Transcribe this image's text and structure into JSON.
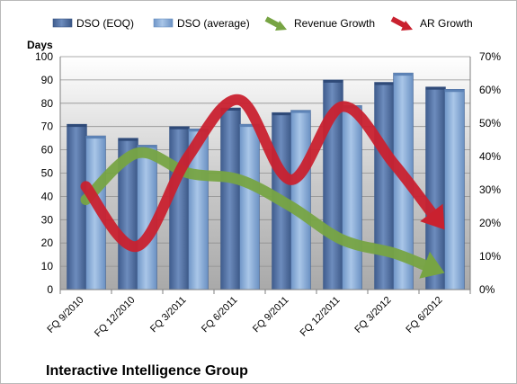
{
  "chart_data": {
    "type": "bar",
    "title": "Interactive Intelligence Group",
    "ylabel": "Days",
    "ylim": [
      0,
      100
    ],
    "y_ticks": [
      "0",
      "10",
      "20",
      "30",
      "40",
      "50",
      "60",
      "70",
      "80",
      "90",
      "100"
    ],
    "y2lim": [
      0,
      70
    ],
    "y2_ticks": [
      "0%",
      "10%",
      "20%",
      "30%",
      "40%",
      "50%",
      "60%",
      "70%"
    ],
    "legend_position": "top",
    "grid": true,
    "categories": [
      "FQ 9/2010",
      "FQ 12/2010",
      "FQ 3/2011",
      "FQ 6/2011",
      "FQ 9/2011",
      "FQ 12/2011",
      "FQ 3/2012",
      "FQ 6/2012"
    ],
    "series": [
      {
        "name": "DSO (EOQ)",
        "type": "bar",
        "axis": "left",
        "color": "#4f6fa0",
        "values": [
          71,
          65,
          70,
          78,
          76,
          90,
          89,
          87
        ]
      },
      {
        "name": "DSO (average)",
        "type": "bar",
        "axis": "right_days",
        "color": "#86aad4",
        "values": [
          66,
          62,
          69,
          71,
          77,
          79,
          93,
          86
        ]
      },
      {
        "name": "Revenue Growth",
        "type": "arrow-line",
        "axis": "right",
        "color": "#77a443",
        "values": [
          27,
          41,
          35,
          33,
          25,
          15,
          11,
          5
        ]
      },
      {
        "name": "AR Growth",
        "type": "arrow-line",
        "axis": "right",
        "color": "#c9212f",
        "values": [
          31,
          13,
          40,
          57,
          33,
          55,
          38,
          18
        ]
      }
    ]
  }
}
